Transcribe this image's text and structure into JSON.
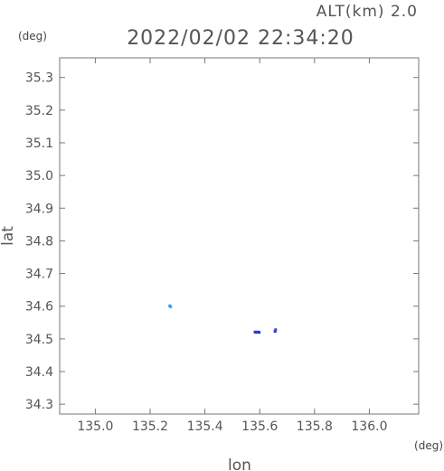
{
  "header": {
    "altitude": "ALT(km) 2.0",
    "timestamp": "2022/02/02 22:34:20",
    "y_unit": "(deg)",
    "x_unit": "(deg)"
  },
  "chart_data": {
    "type": "scatter",
    "xlabel": "lon",
    "ylabel": "lat",
    "xlim": [
      134.87,
      136.18
    ],
    "ylim": [
      34.27,
      35.36
    ],
    "x_ticks": [
      135.0,
      135.2,
      135.4,
      135.6,
      135.8,
      136.0
    ],
    "x_tick_labels": [
      "135.0",
      "135.2",
      "135.4",
      "135.6",
      "135.8",
      "136.0"
    ],
    "y_ticks": [
      34.3,
      34.4,
      34.5,
      34.6,
      34.7,
      34.8,
      34.9,
      35.0,
      35.1,
      35.2,
      35.3
    ],
    "y_tick_labels": [
      "34.3",
      "34.4",
      "34.5",
      "34.6",
      "34.7",
      "34.8",
      "34.9",
      "35.0",
      "35.1",
      "35.2",
      "35.3"
    ],
    "grid": false,
    "points": [
      {
        "x": 135.272,
        "y": 34.601,
        "color": "#2288ff"
      },
      {
        "x": 135.275,
        "y": 34.598,
        "color": "#33aaff"
      },
      {
        "x": 135.583,
        "y": 34.521,
        "color": "#2233cc"
      },
      {
        "x": 135.588,
        "y": 34.52,
        "color": "#2233cc"
      },
      {
        "x": 135.593,
        "y": 34.521,
        "color": "#3344dd"
      },
      {
        "x": 135.598,
        "y": 34.52,
        "color": "#2233cc"
      },
      {
        "x": 135.656,
        "y": 34.523,
        "color": "#2233cc"
      },
      {
        "x": 135.658,
        "y": 34.528,
        "color": "#3344dd"
      }
    ]
  }
}
